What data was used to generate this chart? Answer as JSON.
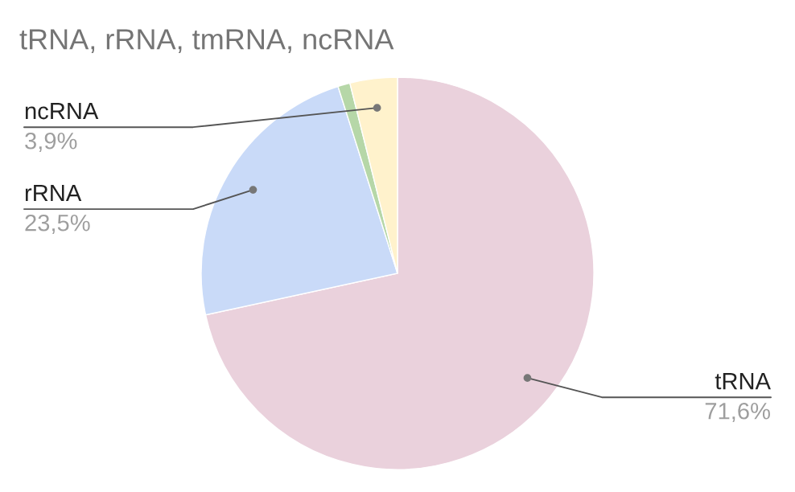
{
  "chart_data": {
    "type": "pie",
    "title": "tRNA, rRNA, tmRNA, ncRNA",
    "categories": [
      "tRNA",
      "rRNA",
      null,
      "ncRNA"
    ],
    "values": [
      71.6,
      23.5,
      1.0,
      3.9
    ],
    "value_labels": [
      "71,6%",
      "23,5%",
      null,
      "3,9%"
    ],
    "colors": [
      "#ead1dc",
      "#c9daf8",
      "#b6d7a8",
      "#fff2cc"
    ],
    "legend": false
  }
}
